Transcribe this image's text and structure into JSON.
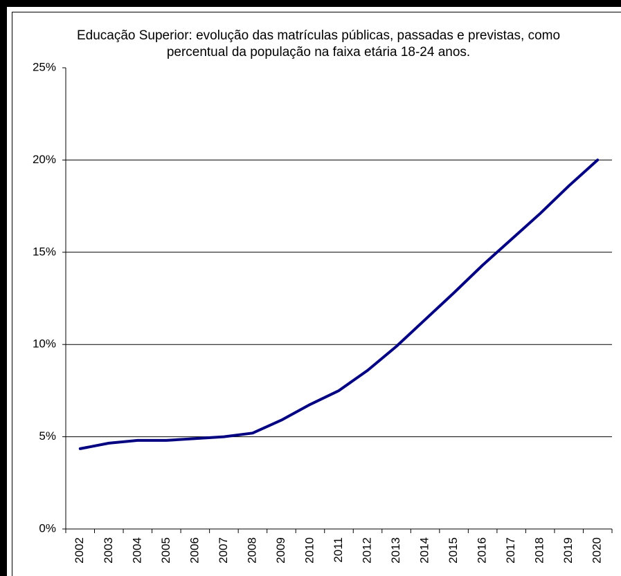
{
  "chart_data": {
    "type": "line",
    "title": "Educação Superior: evolução das matrículas públicas, passadas e previstas, como percentual da população na faixa etária 18-24 anos.",
    "categories": [
      "2002",
      "2003",
      "2004",
      "2005",
      "2006",
      "2007",
      "2008",
      "2009",
      "2010",
      "2011",
      "2012",
      "2013",
      "2014",
      "2015",
      "2016",
      "2017",
      "2018",
      "2019",
      "2020"
    ],
    "values": [
      4.35,
      4.65,
      4.8,
      4.8,
      4.9,
      5.0,
      5.2,
      5.9,
      6.75,
      7.5,
      8.6,
      9.9,
      11.35,
      12.8,
      14.3,
      15.7,
      17.1,
      18.6,
      20.0
    ],
    "color": "#000080",
    "ylim": [
      0,
      25
    ],
    "yticks": [
      {
        "value": 0,
        "label": "0%"
      },
      {
        "value": 5,
        "label": "5%"
      },
      {
        "value": 10,
        "label": "10%"
      },
      {
        "value": 15,
        "label": "15%"
      },
      {
        "value": 20,
        "label": "20%"
      },
      {
        "value": 25,
        "label": "25%"
      }
    ],
    "grid": true
  }
}
